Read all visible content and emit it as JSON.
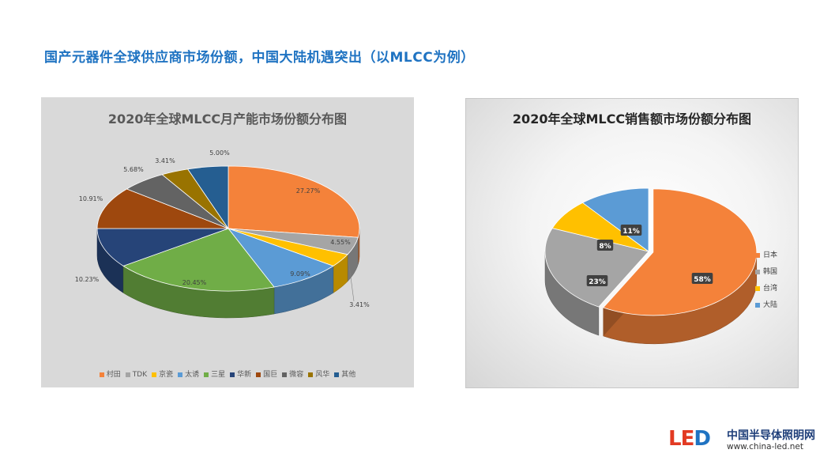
{
  "headline": "国产元器件全球供应商市场份额，中国大陆机遇突出（以MLCC为例）",
  "chart_data": [
    {
      "type": "pie",
      "title": "2020年全球MLCC月产能市场份额分布图",
      "style": "3d",
      "legend_position": "bottom",
      "categories": [
        "村田",
        "TDK",
        "京瓷",
        "太诱",
        "三星",
        "华新",
        "国巨",
        "微容",
        "风华",
        "其他"
      ],
      "values": [
        27.27,
        4.55,
        3.41,
        9.09,
        20.45,
        10.23,
        10.91,
        5.68,
        3.41,
        5.0
      ],
      "labels": [
        "27.27%",
        "4.55%",
        "3.41%",
        "9.09%",
        "20.45%",
        "10.23%",
        "10.91%",
        "5.68%",
        "3.41%",
        "5.00%"
      ],
      "colors": [
        "#f4823a",
        "#a5a5a5",
        "#ffc000",
        "#5b9bd5",
        "#70ad47",
        "#264478",
        "#9e480e",
        "#636363",
        "#997300",
        "#255e91"
      ]
    },
    {
      "type": "pie",
      "title": "2020年全球MLCC销售额市场份额分布图",
      "style": "3d",
      "legend_position": "right",
      "categories": [
        "日本",
        "韩国",
        "台湾",
        "大陆"
      ],
      "values": [
        58,
        23,
        8,
        11
      ],
      "labels": [
        "58%",
        "23%",
        "8%",
        "11%"
      ],
      "colors": [
        "#f4823a",
        "#a5a5a5",
        "#ffc000",
        "#5b9bd5"
      ]
    }
  ],
  "logo": {
    "mark": "LED",
    "name": "中国半导体照明网",
    "url": "www.china-led.net"
  }
}
